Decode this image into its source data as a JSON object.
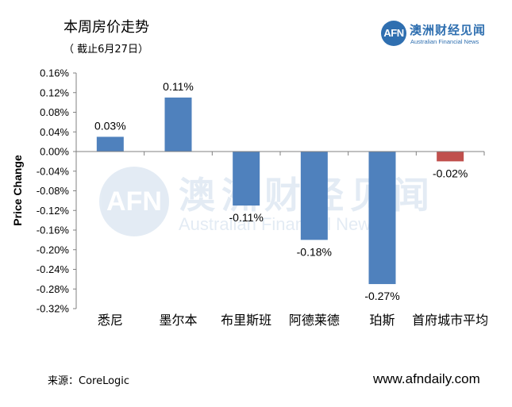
{
  "header": {
    "title": "本周房价走势",
    "subtitle": "（ 截止6月27日）"
  },
  "logo": {
    "mark": "AFN",
    "name_cn": "澳洲财经见闻",
    "name_en": "Australian Financial News"
  },
  "watermark": {
    "mark": "AFN",
    "name_cn": "澳洲财经见闻",
    "name_en": "Australian Financial News"
  },
  "footer": {
    "source": "来源：CoreLogic",
    "website": "www.afndaily.com"
  },
  "chart_data": {
    "type": "bar",
    "title": "",
    "xlabel": "",
    "ylabel": "Price Change",
    "categories": [
      "悉尼",
      "墨尔本",
      "布里斯班",
      "阿德莱德",
      "珀斯",
      "首府城市平均"
    ],
    "values": [
      0.03,
      0.11,
      -0.11,
      -0.18,
      -0.27,
      -0.02
    ],
    "data_labels": [
      "0.03%",
      "0.11%",
      "-0.11%",
      "-0.18%",
      "-0.27%",
      "-0.02%"
    ],
    "ylim": [
      -0.32,
      0.16
    ],
    "yticks": [
      0.16,
      0.12,
      0.08,
      0.04,
      0.0,
      -0.04,
      -0.08,
      -0.12,
      -0.16,
      -0.2,
      -0.24,
      -0.28,
      -0.32
    ],
    "ytick_labels": [
      "0.16%",
      "0.12%",
      "0.08%",
      "0.04%",
      "0.00%",
      "-0.04%",
      "-0.08%",
      "-0.12%",
      "-0.16%",
      "-0.20%",
      "-0.24%",
      "-0.28%",
      "-0.32%"
    ],
    "bar_colors": [
      "#4f81bd",
      "#4f81bd",
      "#4f81bd",
      "#4f81bd",
      "#4f81bd",
      "#c0504d"
    ],
    "grid": false,
    "legend": "none"
  }
}
